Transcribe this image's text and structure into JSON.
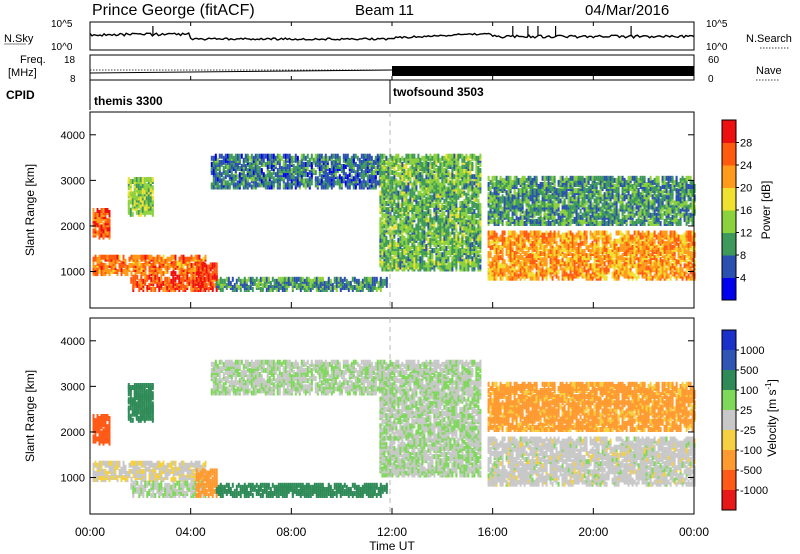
{
  "header": {
    "station": "Prince George (fitACF)",
    "beam": "Beam 11",
    "date": "04/Mar/2016"
  },
  "summary_panels": {
    "nsky_label": "N.Sky",
    "nsky_ticks": [
      "10^5",
      "10^0"
    ],
    "nsearch_label": "N.Search",
    "nsearch_ticks": [
      "10^5",
      "10^0"
    ],
    "freq_label_1": "Freq.",
    "freq_label_2": "[MHz]",
    "freq_ticks": [
      "18",
      "8"
    ],
    "nave_label": "Nave",
    "nave_ticks": [
      "60",
      "0"
    ],
    "cpid_label": "CPID",
    "cpid_segments": [
      {
        "name": "themis 3300",
        "start_hour": 0
      },
      {
        "name": "twofsound 3503",
        "start_hour": 12
      }
    ]
  },
  "x_axis": {
    "label": "Time UT",
    "ticks": [
      "00:00",
      "04:00",
      "08:00",
      "12:00",
      "16:00",
      "20:00",
      "00:00"
    ],
    "range_hours": [
      0,
      24
    ]
  },
  "power_panel": {
    "ylabel": "Slant Range [km]",
    "y_ticks": [
      "1000",
      "2000",
      "3000",
      "4000"
    ],
    "colorbar_label": "Power [dB]",
    "colorbar_ticks": [
      "4",
      "8",
      "12",
      "16",
      "20",
      "24",
      "28"
    ],
    "colors": [
      "#0000ee",
      "#2a50b0",
      "#3e9a5a",
      "#8cd23c",
      "#f0e030",
      "#ff9a1a",
      "#ff5a10",
      "#ee1010"
    ]
  },
  "velocity_panel": {
    "ylabel": "Slant Range [km]",
    "y_ticks": [
      "1000",
      "2000",
      "3000",
      "4000"
    ],
    "colorbar_label": "Velocity [m s",
    "colorbar_sup": "-1",
    "colorbar_label_end": "]",
    "colorbar_ticks": [
      "1000",
      "500",
      "100",
      "25",
      "-25",
      "-100",
      "-500",
      "-1000"
    ],
    "colors": [
      "#1a30c8",
      "#2f55b5",
      "#2e8b57",
      "#7ed85a",
      "#c8c8c8",
      "#f5d040",
      "#ff9a30",
      "#ff5a18",
      "#e81818"
    ]
  },
  "chart_data": {
    "type": "heatmap",
    "x_range_hours": [
      0,
      24
    ],
    "y_range_km": [
      200,
      4500
    ],
    "regions": [
      {
        "t0": 0.1,
        "t1": 4.6,
        "r0": 900,
        "r1": 1300,
        "power": 24,
        "velocity": -20
      },
      {
        "t0": 0.1,
        "t1": 0.8,
        "r0": 1700,
        "r1": 2300,
        "power": 26,
        "velocity": -500
      },
      {
        "t0": 1.6,
        "t1": 4.6,
        "r0": 550,
        "r1": 850,
        "power": 26,
        "velocity": 20
      },
      {
        "t0": 4.2,
        "t1": 5.0,
        "r0": 550,
        "r1": 1100,
        "power": 28,
        "velocity": -200
      },
      {
        "t0": 1.5,
        "t1": 2.5,
        "r0": 2200,
        "r1": 3000,
        "power": 14,
        "velocity": 100
      },
      {
        "t0": 5.0,
        "t1": 11.8,
        "r0": 550,
        "r1": 800,
        "power": 10,
        "velocity": 150
      },
      {
        "t0": 4.8,
        "t1": 11.5,
        "r0": 2800,
        "r1": 3500,
        "power": 8,
        "velocity": 20
      },
      {
        "t0": 11.5,
        "t1": 15.5,
        "r0": 1000,
        "r1": 3500,
        "power": 12,
        "velocity": 20
      },
      {
        "t0": 15.8,
        "t1": 24.0,
        "r0": 800,
        "r1": 1800,
        "power": 22,
        "velocity": 0
      },
      {
        "t0": 15.8,
        "t1": 24.0,
        "r0": 2000,
        "r1": 3000,
        "power": 10,
        "velocity": -80
      }
    ]
  }
}
